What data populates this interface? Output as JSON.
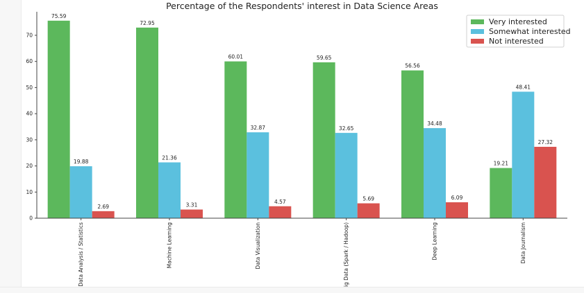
{
  "chart_data": {
    "type": "bar",
    "title": "Percentage of the Respondents' interest in Data Science Areas",
    "xlabel": "",
    "ylabel": "",
    "ylim": [
      0,
      79
    ],
    "yticks": [
      0,
      10,
      20,
      30,
      40,
      50,
      60,
      70
    ],
    "grid": false,
    "legend_position": "top-right",
    "categories": [
      "Data Analysis / Statistics",
      "Machine Learning",
      "Data Visualization",
      "Big Data (Spark / Hadoop)",
      "Deep Learning",
      "Data Journalism"
    ],
    "series": [
      {
        "name": "Very interested",
        "color": "#5cb85c",
        "values": [
          75.59,
          72.95,
          60.01,
          59.65,
          56.56,
          19.21
        ]
      },
      {
        "name": "Somewhat interested",
        "color": "#5bc0de",
        "values": [
          19.88,
          21.36,
          32.87,
          32.65,
          34.48,
          48.41
        ]
      },
      {
        "name": "Not interested",
        "color": "#d9534f",
        "values": [
          2.69,
          3.31,
          4.57,
          5.69,
          6.09,
          27.32
        ]
      }
    ]
  }
}
